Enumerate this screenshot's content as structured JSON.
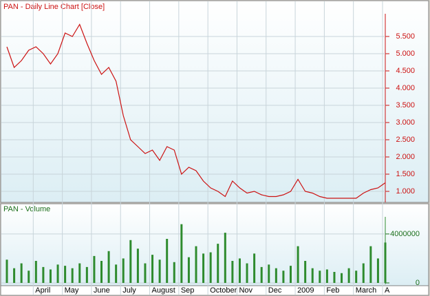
{
  "chart_data": [
    {
      "type": "line",
      "title": "PAN - Daily Line Chart [Close]",
      "series": [
        {
          "name": "PAN",
          "color": "#cc1111",
          "values": [
            5.2,
            4.6,
            4.8,
            5.1,
            5.2,
            5.0,
            4.7,
            5.0,
            5.6,
            5.5,
            5.85,
            5.3,
            4.8,
            4.4,
            4.6,
            4.2,
            3.2,
            2.5,
            2.3,
            2.1,
            2.2,
            1.9,
            2.3,
            2.2,
            1.5,
            1.7,
            1.6,
            1.3,
            1.1,
            1.0,
            0.85,
            1.3,
            1.1,
            0.95,
            1.0,
            0.9,
            0.85,
            0.85,
            0.9,
            1.0,
            1.35,
            1.0,
            0.95,
            0.85,
            0.8,
            0.8,
            0.8,
            0.8,
            0.8,
            0.95,
            1.05,
            1.1,
            1.25
          ]
        }
      ],
      "ylim": [
        0.66,
        6.16
      ],
      "yticks": [
        {
          "value": 1,
          "label": "1.000"
        },
        {
          "value": 1.5,
          "label": "1.500"
        },
        {
          "value": 2,
          "label": "2.000"
        },
        {
          "value": 2.5,
          "label": "2.500"
        },
        {
          "value": 3,
          "label": "3.000"
        },
        {
          "value": 3.5,
          "label": "3.500"
        },
        {
          "value": 4,
          "label": "4.000"
        },
        {
          "value": 4.5,
          "label": "4.500"
        },
        {
          "value": 5,
          "label": "5.000"
        },
        {
          "value": 5.5,
          "label": "5.500"
        }
      ],
      "grid": true
    },
    {
      "type": "bar",
      "title": "PAN - Volume",
      "color": "#2e8b2e",
      "categories": [
        null,
        null,
        null,
        null,
        "April",
        null,
        null,
        null,
        "May",
        null,
        null,
        null,
        "June",
        null,
        null,
        null,
        "July",
        null,
        null,
        null,
        "August",
        null,
        null,
        null,
        "Sep",
        null,
        null,
        null,
        "October",
        null,
        null,
        null,
        "Nov",
        null,
        null,
        null,
        "Dec",
        null,
        null,
        null,
        "2009",
        null,
        null,
        null,
        "Feb",
        null,
        null,
        null,
        "March",
        null,
        null,
        null,
        "A"
      ],
      "values": [
        1900000,
        1200000,
        1600000,
        1000000,
        1800000,
        1300000,
        1100000,
        1500000,
        1400000,
        1200000,
        1600000,
        1300000,
        2200000,
        1800000,
        2600000,
        1500000,
        2000000,
        3500000,
        2800000,
        1600000,
        2300000,
        1900000,
        3600000,
        1700000,
        4800000,
        2100000,
        3000000,
        2400000,
        2500000,
        3200000,
        4100000,
        1800000,
        2000000,
        1600000,
        2400000,
        1300000,
        1500000,
        1200000,
        1000000,
        1400000,
        3000000,
        1800000,
        1200000,
        1000000,
        1100000,
        900000,
        800000,
        1200000,
        1000000,
        1600000,
        3000000,
        2000000,
        3300000
      ],
      "ylim": [
        0,
        5400000
      ],
      "yticks": [
        0,
        4000000
      ],
      "grid": true
    }
  ]
}
